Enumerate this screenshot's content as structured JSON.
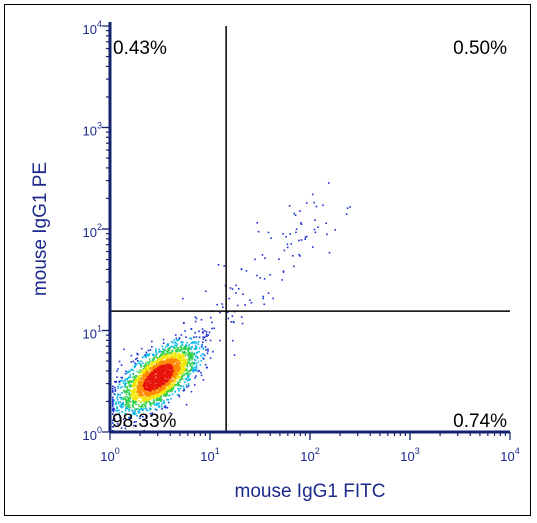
{
  "chart_data": {
    "type": "scatter",
    "subtype": "flow-cytometry-density-dot-plot",
    "xlabel": "mouse IgG1 FITC",
    "ylabel": "mouse IgG1 PE",
    "x_scale": "log",
    "y_scale": "log",
    "xlim": [
      1,
      10000
    ],
    "ylim": [
      1,
      10000
    ],
    "x_ticks": [
      {
        "base": "10",
        "exp": "0",
        "value": 1
      },
      {
        "base": "10",
        "exp": "1",
        "value": 10
      },
      {
        "base": "10",
        "exp": "2",
        "value": 100
      },
      {
        "base": "10",
        "exp": "3",
        "value": 1000
      },
      {
        "base": "10",
        "exp": "4",
        "value": 10000
      }
    ],
    "y_ticks": [
      {
        "base": "10",
        "exp": "0",
        "value": 1
      },
      {
        "base": "10",
        "exp": "1",
        "value": 10
      },
      {
        "base": "10",
        "exp": "2",
        "value": 100
      },
      {
        "base": "10",
        "exp": "3",
        "value": 1000
      },
      {
        "base": "10",
        "exp": "4",
        "value": 10000
      }
    ],
    "gates": {
      "x": 14.5,
      "y": 15.5
    },
    "quadrants": [
      {
        "position": "upper-left",
        "label": "0.43%"
      },
      {
        "position": "upper-right",
        "label": "0.50%"
      },
      {
        "position": "lower-left",
        "label": "98.33%"
      },
      {
        "position": "lower-right",
        "label": "0.74%"
      }
    ],
    "population": {
      "center_x": 3.0,
      "center_y": 3.5
    },
    "density_colors": [
      "#1a2fd6",
      "#00b4e6",
      "#2fd04a",
      "#f2e600",
      "#ff8a00",
      "#e8140a"
    ],
    "grid": false
  }
}
